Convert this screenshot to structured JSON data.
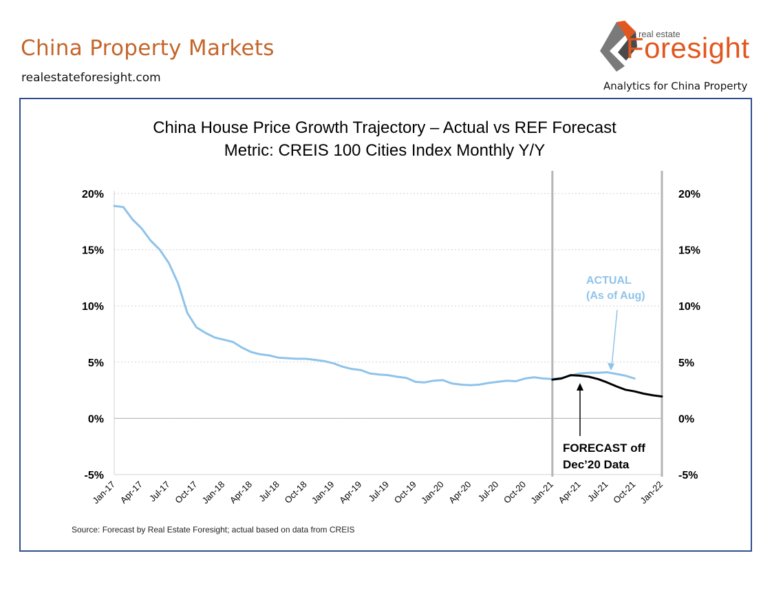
{
  "header": {
    "title": "China Property Markets",
    "url": "realestateforesight.com",
    "logo_small": "real estate",
    "logo_main": "Foresight",
    "tagline": "Analytics for China Property"
  },
  "colors": {
    "title": "#c4652a",
    "frame": "#2f4d8c",
    "actual": "#8ec3ea",
    "forecast": "#000000",
    "divider": "#b5b5b5",
    "logo_orange": "#e2571f",
    "logo_grey": "#7a7a7a"
  },
  "chart_data": {
    "type": "line",
    "title": "China House Price Growth Trajectory – Actual vs REF Forecast",
    "subtitle": "Metric: CREIS 100 Cities Index Monthly Y/Y",
    "xlabel": "",
    "ylabel": "",
    "ylim": [
      -5,
      20
    ],
    "y_ticks": [
      20,
      15,
      10,
      5,
      0,
      -5
    ],
    "y_tick_labels": [
      "20%",
      "15%",
      "10%",
      "5%",
      "0%",
      "-5%"
    ],
    "grid": "horizontal dotted",
    "x_tick_labels": [
      "Jan-17",
      "Apr-17",
      "Jul-17",
      "Oct-17",
      "Jan-18",
      "Apr-18",
      "Jul-18",
      "Oct-18",
      "Jan-19",
      "Apr-19",
      "Jul-19",
      "Oct-19",
      "Jan-20",
      "Apr-20",
      "Jul-20",
      "Oct-20",
      "Jan-21",
      "Apr-21",
      "Jul-21",
      "Oct-21",
      "Jan-22"
    ],
    "x_range_months": [
      0,
      60
    ],
    "divider_months": [
      48,
      60
    ],
    "series": [
      {
        "name": "Actual",
        "start_month": 0,
        "values": [
          18.9,
          18.8,
          17.7,
          16.9,
          15.8,
          15.0,
          13.8,
          12.0,
          9.4,
          8.1,
          7.6,
          7.2,
          7.0,
          6.8,
          6.3,
          5.9,
          5.7,
          5.6,
          5.4,
          5.35,
          5.3,
          5.3,
          5.2,
          5.1,
          4.9,
          4.6,
          4.4,
          4.3,
          4.0,
          3.9,
          3.85,
          3.7,
          3.6,
          3.25,
          3.2,
          3.35,
          3.4,
          3.1,
          3.0,
          2.95,
          3.0,
          3.15,
          3.25,
          3.35,
          3.3,
          3.55,
          3.65,
          3.55,
          3.5,
          3.6,
          3.8,
          4.0,
          4.05,
          4.05,
          4.1,
          3.95,
          3.8,
          3.55
        ]
      },
      {
        "name": "Forecast",
        "start_month": 48,
        "values": [
          3.45,
          3.55,
          3.85,
          3.8,
          3.7,
          3.5,
          3.2,
          2.85,
          2.55,
          2.4,
          2.2,
          2.05,
          1.95
        ]
      }
    ],
    "annotations": [
      {
        "id": "actual",
        "lines": [
          "ACTUAL",
          "(As of Aug)"
        ]
      },
      {
        "id": "forecast",
        "lines": [
          "FORECAST off",
          "Dec’20 Data"
        ]
      }
    ],
    "source": "Source: Forecast by Real Estate Foresight; actual based on data from CREIS"
  }
}
